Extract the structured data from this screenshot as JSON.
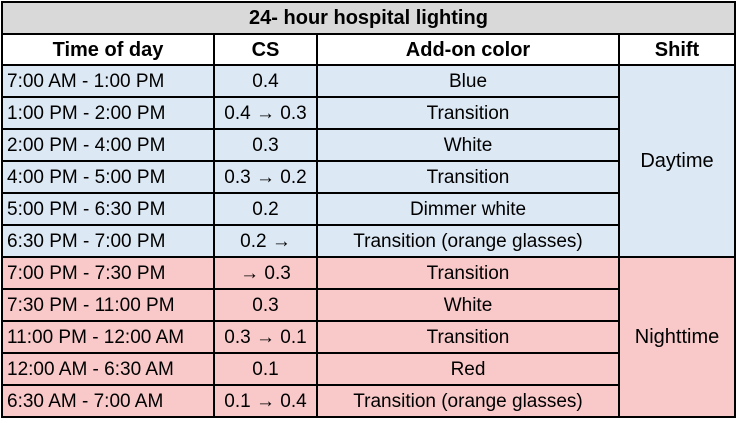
{
  "title": "24- hour hospital lighting",
  "headers": {
    "time": "Time of day",
    "cs": "CS",
    "color": "Add-on color",
    "shift": "Shift"
  },
  "colors": {
    "title_bg": "#d9d9d9",
    "day_bg": "#dce8f4",
    "night_bg": "#f9c9c9",
    "border": "#000000"
  },
  "shifts": {
    "day": "Daytime",
    "night": "Nighttime"
  },
  "rows": [
    {
      "time": "7:00 AM - 1:00 PM",
      "cs": "0.4",
      "color": "Blue",
      "shift": "day"
    },
    {
      "time": "1:00 PM - 2:00 PM",
      "cs": "0.4 → 0.3",
      "color": "Transition",
      "shift": "day"
    },
    {
      "time": "2:00 PM - 4:00 PM",
      "cs": "0.3",
      "color": "White",
      "shift": "day"
    },
    {
      "time": "4:00 PM - 5:00 PM",
      "cs": "0.3 → 0.2",
      "color": "Transition",
      "shift": "day"
    },
    {
      "time": "5:00 PM - 6:30 PM",
      "cs": "0.2",
      "color": "Dimmer white",
      "shift": "day"
    },
    {
      "time": "6:30 PM - 7:00 PM",
      "cs": "0.2 →",
      "color": "Transition (orange glasses)",
      "shift": "day"
    },
    {
      "time": "7:00 PM - 7:30 PM",
      "cs": "→ 0.3",
      "color": "Transition",
      "shift": "night"
    },
    {
      "time": "7:30 PM - 11:00 PM",
      "cs": "0.3",
      "color": "White",
      "shift": "night"
    },
    {
      "time": "11:00 PM - 12:00 AM",
      "cs": "0.3 → 0.1",
      "color": "Transition",
      "shift": "night"
    },
    {
      "time": "12:00 AM - 6:30 AM",
      "cs": "0.1",
      "color": "Red",
      "shift": "night"
    },
    {
      "time": "6:30 AM - 7:00 AM",
      "cs": "0.1 → 0.4",
      "color": "Transition (orange glasses)",
      "shift": "night"
    }
  ]
}
